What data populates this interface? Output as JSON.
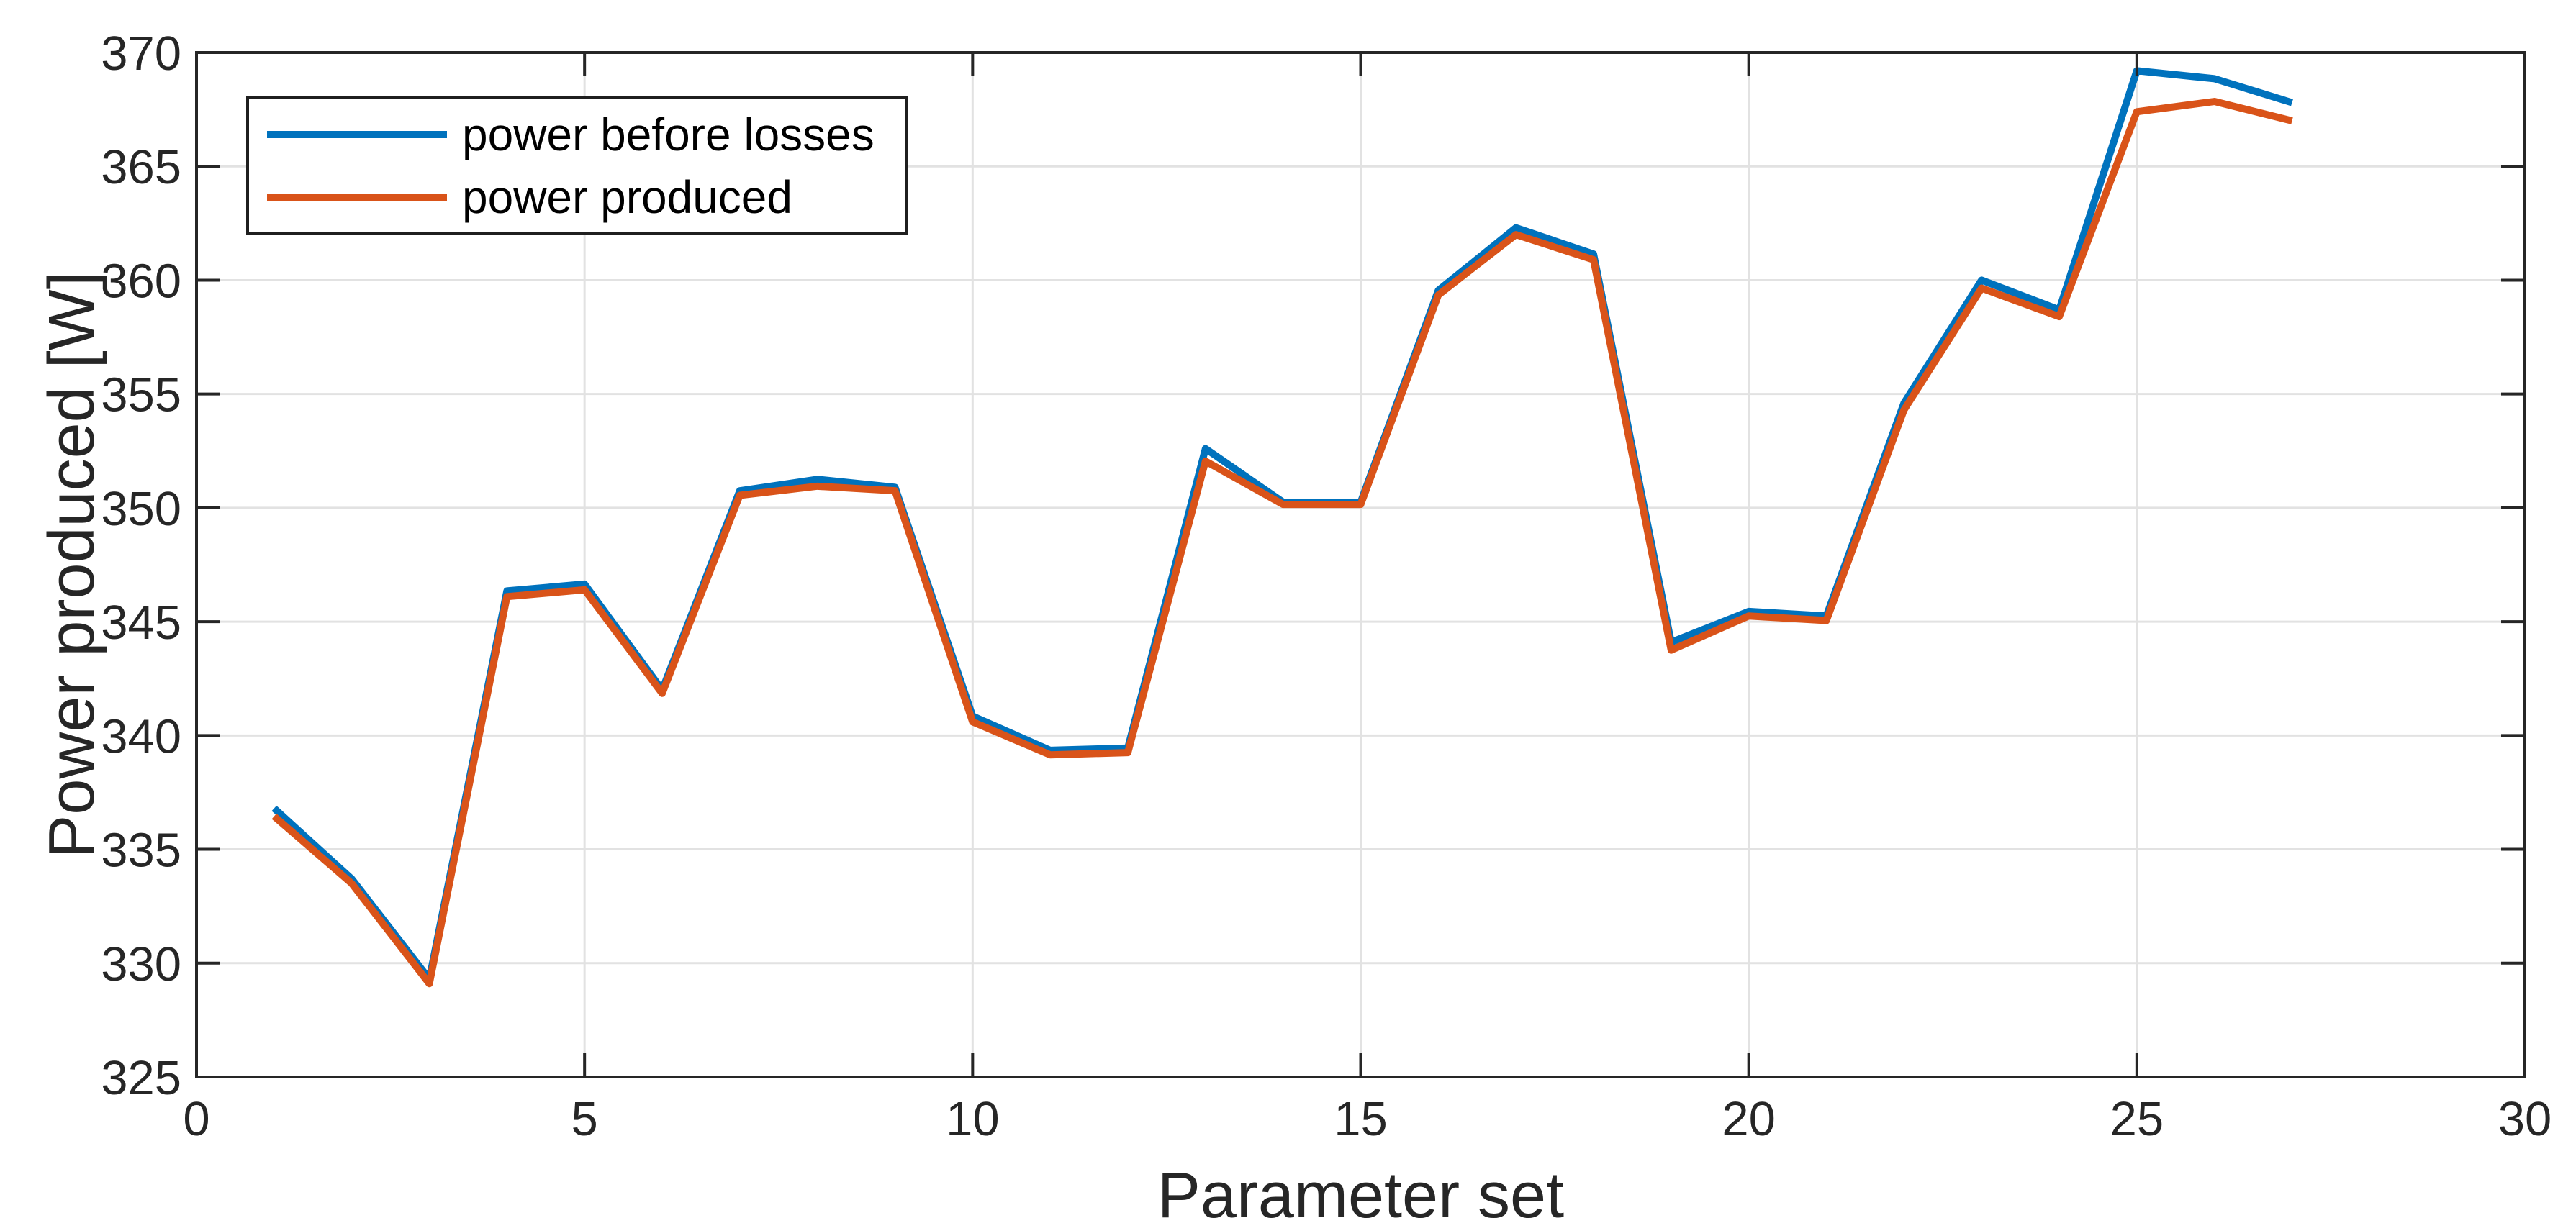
{
  "figure": {
    "background": "#ffffff",
    "axis_color": "#262626",
    "grid_color": "#e2e2e2"
  },
  "chart_data": {
    "type": "line",
    "title": "",
    "xlabel": "Parameter set",
    "ylabel": "Power produced [W]",
    "xlim": [
      0,
      30
    ],
    "ylim": [
      325,
      370
    ],
    "xticks": [
      0,
      5,
      10,
      15,
      20,
      25,
      30
    ],
    "yticks": [
      325,
      330,
      335,
      340,
      345,
      350,
      355,
      360,
      365,
      370
    ],
    "grid": true,
    "legend_position": "top-left",
    "x": [
      1,
      2,
      3,
      4,
      5,
      6,
      7,
      8,
      9,
      10,
      11,
      12,
      13,
      14,
      15,
      16,
      17,
      18,
      19,
      20,
      21,
      22,
      23,
      24,
      25,
      26,
      27
    ],
    "series": [
      {
        "name": "power before losses",
        "color": "#0072BD",
        "values": [
          336.8,
          333.7,
          329.3,
          346.35,
          346.65,
          342.0,
          350.75,
          351.25,
          350.9,
          340.85,
          339.35,
          339.45,
          352.6,
          350.25,
          350.25,
          359.55,
          362.3,
          361.15,
          344.1,
          345.45,
          345.25,
          354.6,
          360.0,
          358.7,
          369.2,
          368.85,
          367.8
        ]
      },
      {
        "name": "power produced",
        "color": "#D95319",
        "values": [
          336.45,
          333.5,
          329.1,
          346.1,
          346.4,
          341.85,
          350.55,
          350.95,
          350.75,
          340.6,
          339.15,
          339.25,
          352.05,
          350.15,
          350.15,
          359.35,
          362.0,
          360.9,
          343.75,
          345.25,
          345.05,
          354.3,
          359.65,
          358.4,
          367.4,
          367.85,
          367.0
        ]
      }
    ]
  }
}
